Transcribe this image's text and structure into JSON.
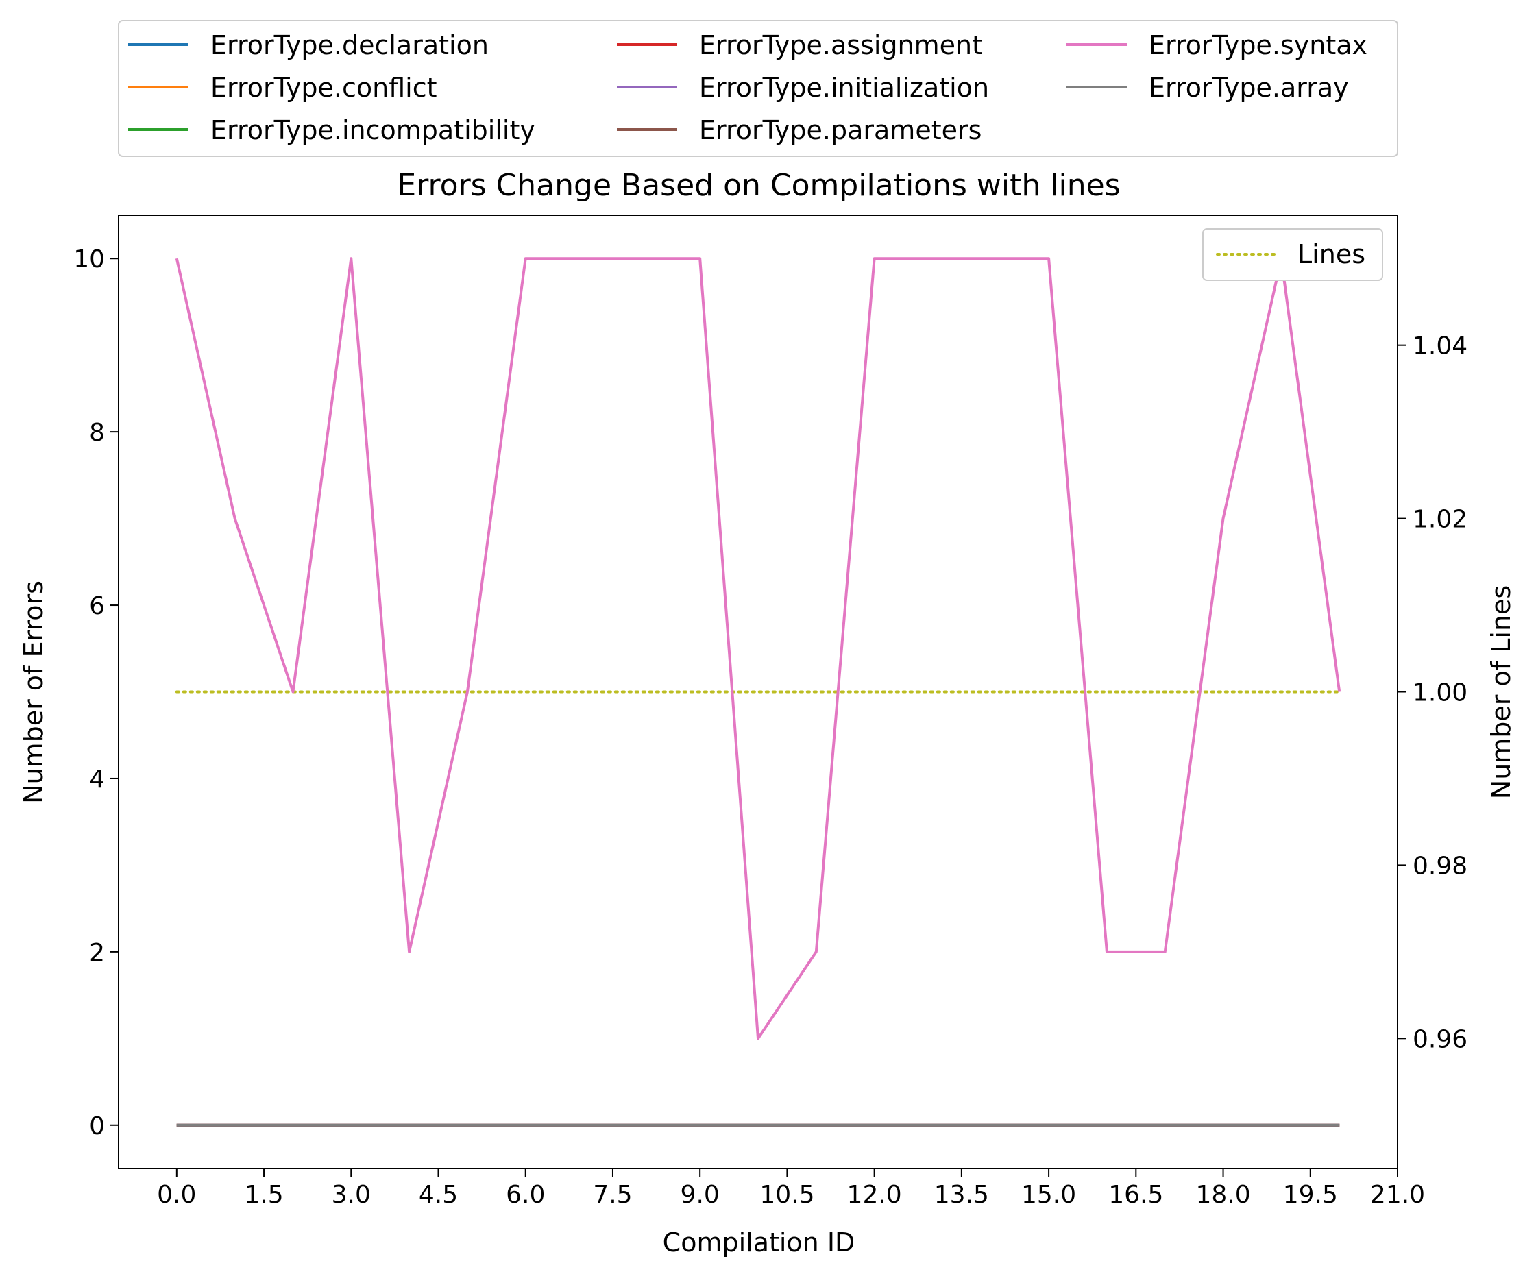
{
  "chart_data": {
    "type": "line",
    "title": "Errors Change Based on Compilations with lines",
    "xlabel": "Compilation ID",
    "ylabel": "Number of Errors",
    "y2label": "Number of Lines",
    "xlim": [
      -1,
      21
    ],
    "ylim": [
      -0.5,
      10.5
    ],
    "y2lim": [
      0.945,
      1.055
    ],
    "xticks": [
      "0.0",
      "1.5",
      "3.0",
      "4.5",
      "6.0",
      "7.5",
      "9.0",
      "10.5",
      "12.0",
      "13.5",
      "15.0",
      "16.5",
      "18.0",
      "19.5",
      "21.0"
    ],
    "yticks": [
      "0",
      "2",
      "4",
      "6",
      "8",
      "10"
    ],
    "y2ticks": [
      "0.96",
      "0.98",
      "1.00",
      "1.02",
      "1.04"
    ],
    "x": [
      0,
      1,
      2,
      3,
      4,
      5,
      6,
      7,
      8,
      9,
      10,
      11,
      12,
      13,
      14,
      15,
      16,
      17,
      18,
      19,
      20
    ],
    "series": [
      {
        "name": "ErrorType.declaration",
        "color": "#1f77b4",
        "values": [
          0,
          0,
          0,
          0,
          0,
          0,
          0,
          0,
          0,
          0,
          0,
          0,
          0,
          0,
          0,
          0,
          0,
          0,
          0,
          0,
          0
        ]
      },
      {
        "name": "ErrorType.conflict",
        "color": "#ff7f0e",
        "values": [
          0,
          0,
          0,
          0,
          0,
          0,
          0,
          0,
          0,
          0,
          0,
          0,
          0,
          0,
          0,
          0,
          0,
          0,
          0,
          0,
          0
        ]
      },
      {
        "name": "ErrorType.incompatibility",
        "color": "#2ca02c",
        "values": [
          0,
          0,
          0,
          0,
          0,
          0,
          0,
          0,
          0,
          0,
          0,
          0,
          0,
          0,
          0,
          0,
          0,
          0,
          0,
          0,
          0
        ]
      },
      {
        "name": "ErrorType.assignment",
        "color": "#d62728",
        "values": [
          0,
          0,
          0,
          0,
          0,
          0,
          0,
          0,
          0,
          0,
          0,
          0,
          0,
          0,
          0,
          0,
          0,
          0,
          0,
          0,
          0
        ]
      },
      {
        "name": "ErrorType.initialization",
        "color": "#9467bd",
        "values": [
          0,
          0,
          0,
          0,
          0,
          0,
          0,
          0,
          0,
          0,
          0,
          0,
          0,
          0,
          0,
          0,
          0,
          0,
          0,
          0,
          0
        ]
      },
      {
        "name": "ErrorType.parameters",
        "color": "#8c564b",
        "values": [
          0,
          0,
          0,
          0,
          0,
          0,
          0,
          0,
          0,
          0,
          0,
          0,
          0,
          0,
          0,
          0,
          0,
          0,
          0,
          0,
          0
        ]
      },
      {
        "name": "ErrorType.syntax",
        "color": "#e377c2",
        "values": [
          10,
          7,
          5,
          10,
          2,
          5,
          10,
          10,
          10,
          10,
          1,
          2,
          10,
          10,
          10,
          10,
          2,
          2,
          7,
          10,
          5
        ]
      },
      {
        "name": "ErrorType.array",
        "color": "#7f7f7f",
        "values": [
          0,
          0,
          0,
          0,
          0,
          0,
          0,
          0,
          0,
          0,
          0,
          0,
          0,
          0,
          0,
          0,
          0,
          0,
          0,
          0,
          0
        ]
      }
    ],
    "secondary_series": {
      "name": "Lines",
      "color": "#bcbd22",
      "style": "dotted",
      "axis": "right",
      "values": [
        1,
        1,
        1,
        1,
        1,
        1,
        1,
        1,
        1,
        1,
        1,
        1,
        1,
        1,
        1,
        1,
        1,
        1,
        1,
        1,
        1
      ]
    },
    "legend": {
      "placement": "above plot, 3 columns"
    },
    "legend2": {
      "placement": "top-right"
    },
    "grid": false
  }
}
